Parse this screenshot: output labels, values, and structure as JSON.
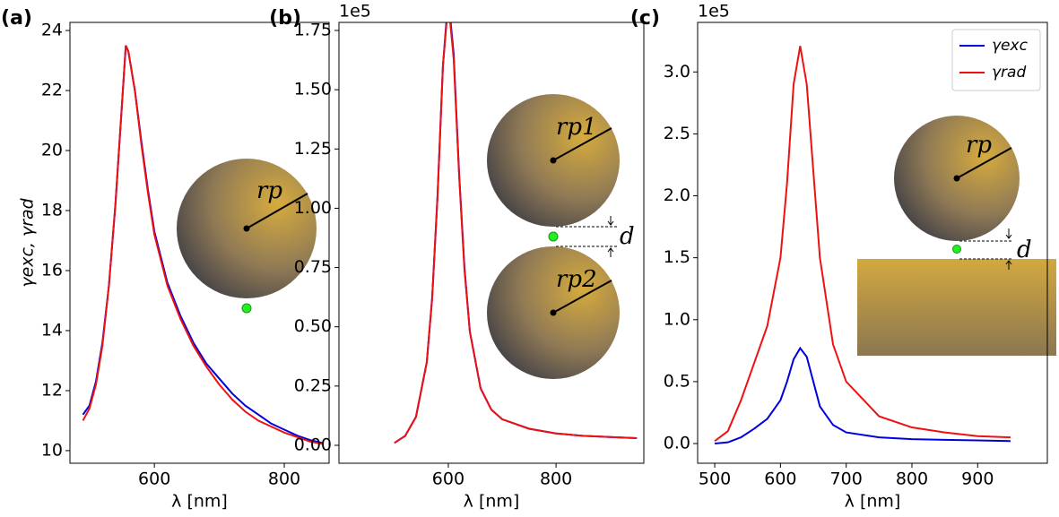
{
  "chart_data": [
    {
      "type": "line",
      "panel_label": "(a)",
      "xlabel": "λ [nm]",
      "ylabel": "γexc, γrad",
      "x": [
        490,
        500,
        510,
        520,
        530,
        540,
        550,
        556,
        560,
        570,
        580,
        590,
        600,
        620,
        640,
        660,
        680,
        700,
        720,
        740,
        760,
        780,
        800,
        820,
        840,
        860
      ],
      "series": [
        {
          "name": "γexc",
          "color": "#0000dd",
          "values": [
            11.2,
            11.5,
            12.3,
            13.6,
            15.5,
            18.2,
            21.5,
            23.5,
            23.3,
            22.0,
            20.3,
            18.7,
            17.3,
            15.6,
            14.5,
            13.6,
            12.9,
            12.4,
            11.9,
            11.5,
            11.2,
            10.9,
            10.7,
            10.5,
            10.35,
            10.25
          ]
        },
        {
          "name": "γrad",
          "color": "#ee1111",
          "values": [
            11.0,
            11.4,
            12.2,
            13.5,
            15.5,
            18.2,
            21.5,
            23.5,
            23.3,
            22.0,
            20.2,
            18.6,
            17.2,
            15.5,
            14.4,
            13.5,
            12.8,
            12.2,
            11.7,
            11.3,
            11.0,
            10.8,
            10.6,
            10.45,
            10.3,
            10.22
          ]
        }
      ],
      "xlim": [
        470,
        869
      ],
      "xticks": [
        600,
        800
      ],
      "ylim": [
        9.58,
        24.27
      ],
      "yticks": [
        10,
        12,
        14,
        16,
        18,
        20,
        22,
        24
      ],
      "annotations": [
        "rp"
      ]
    },
    {
      "type": "line",
      "panel_label": "(b)",
      "xlabel": "λ [nm]",
      "offset_text": "1e5",
      "x": [
        500,
        520,
        540,
        560,
        570,
        580,
        590,
        600,
        610,
        620,
        630,
        640,
        660,
        680,
        700,
        750,
        800,
        850,
        900,
        950
      ],
      "series": [
        {
          "name": "γexc",
          "color": "#0000dd",
          "values": [
            0.01,
            0.04,
            0.12,
            0.35,
            0.62,
            1.05,
            1.6,
            1.89,
            1.65,
            1.15,
            0.75,
            0.48,
            0.24,
            0.15,
            0.11,
            0.07,
            0.05,
            0.04,
            0.035,
            0.03
          ]
        },
        {
          "name": "γrad",
          "color": "#ee1111",
          "values": [
            0.01,
            0.04,
            0.12,
            0.35,
            0.62,
            1.05,
            1.6,
            1.87,
            1.63,
            1.14,
            0.74,
            0.48,
            0.24,
            0.15,
            0.11,
            0.07,
            0.05,
            0.04,
            0.035,
            0.03
          ]
        }
      ],
      "xlim": [
        397,
        963
      ],
      "xticks": [
        600,
        800
      ],
      "ylim": [
        -0.0756,
        1.784
      ],
      "yticks": [
        {
          "value": 0,
          "label": "0.00"
        },
        {
          "value": 0.25,
          "label": "0.25"
        },
        {
          "value": 0.5,
          "label": "0.50"
        },
        {
          "value": 0.75,
          "label": "0.75"
        },
        {
          "value": 1,
          "label": "1.00"
        },
        {
          "value": 1.25,
          "label": "1.25"
        },
        {
          "value": 1.5,
          "label": "1.50"
        },
        {
          "value": 1.75,
          "label": "1.75"
        }
      ],
      "annotations": [
        "rp1",
        "rp2",
        "d"
      ]
    },
    {
      "type": "line",
      "panel_label": "(c)",
      "xlabel": "λ [nm]",
      "offset_text": "1e5",
      "legend": "upper right",
      "x": [
        500,
        520,
        540,
        560,
        580,
        600,
        610,
        620,
        630,
        640,
        650,
        660,
        680,
        700,
        750,
        800,
        850,
        900,
        950
      ],
      "series": [
        {
          "name": "γexc",
          "color": "#0000dd",
          "values": [
            0.0,
            0.01,
            0.05,
            0.12,
            0.2,
            0.35,
            0.5,
            0.68,
            0.77,
            0.7,
            0.5,
            0.3,
            0.15,
            0.09,
            0.05,
            0.035,
            0.03,
            0.025,
            0.02
          ]
        },
        {
          "name": "γrad",
          "color": "#ee1111",
          "values": [
            0.02,
            0.1,
            0.35,
            0.65,
            0.95,
            1.5,
            2.1,
            2.9,
            3.21,
            2.9,
            2.2,
            1.5,
            0.8,
            0.5,
            0.22,
            0.13,
            0.09,
            0.06,
            0.05
          ]
        }
      ],
      "xlim": [
        474,
        1006
      ],
      "xticks": [
        500,
        600,
        700,
        800,
        900
      ],
      "ylim": [
        -0.159,
        3.4
      ],
      "yticks": [
        {
          "value": 0,
          "label": "0.0"
        },
        {
          "value": 0.5,
          "label": "0.5"
        },
        {
          "value": 1,
          "label": "1.0"
        },
        {
          "value": 1.5,
          "label": "1.5"
        },
        {
          "value": 2,
          "label": "2.0"
        },
        {
          "value": 2.5,
          "label": "2.5"
        },
        {
          "value": 3,
          "label": "3.0"
        }
      ],
      "annotations": [
        "rp",
        "d"
      ]
    }
  ]
}
